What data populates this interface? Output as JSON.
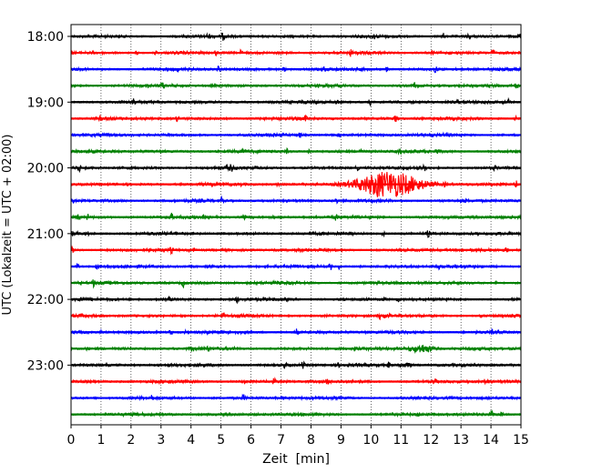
{
  "chart_data": {
    "type": "line",
    "title": "",
    "xlabel": "Zeit  [min]",
    "ylabel": "UTC (Lokalzeit = UTC + 02:00)",
    "xlim": [
      0,
      15
    ],
    "x_ticks": [
      0,
      1,
      2,
      3,
      4,
      5,
      6,
      7,
      8,
      9,
      10,
      11,
      12,
      13,
      14,
      15
    ],
    "grid": "vertical dotted lines at each minute",
    "trace_interval_minutes": 15,
    "y_tick_labels": [
      "18:00",
      "19:00",
      "20:00",
      "21:00",
      "22:00",
      "23:00"
    ],
    "trace_start_times": [
      "18:00",
      "18:15",
      "18:30",
      "18:45",
      "19:00",
      "19:15",
      "19:30",
      "19:45",
      "20:00",
      "20:15",
      "20:30",
      "20:45",
      "21:00",
      "21:15",
      "21:30",
      "21:45",
      "22:00",
      "22:15",
      "22:30",
      "22:45",
      "23:00",
      "23:15",
      "23:30",
      "23:45"
    ],
    "trace_colors": [
      "#000000",
      "#ff0000",
      "#0000ff",
      "#008000"
    ],
    "events": [
      {
        "trace": "20:15",
        "x_start": 8.6,
        "x_end": 12.6,
        "peak_min": 10.6,
        "peak_amplitude": 1.0
      },
      {
        "trace": "22:45",
        "x_start": 11.0,
        "x_end": 12.4,
        "peak_min": 11.7,
        "peak_amplitude": 0.35
      },
      {
        "trace": "23:00",
        "x_start": 10.7,
        "x_end": 11.6,
        "peak_min": 11.1,
        "peak_amplitude": 0.2
      }
    ]
  }
}
